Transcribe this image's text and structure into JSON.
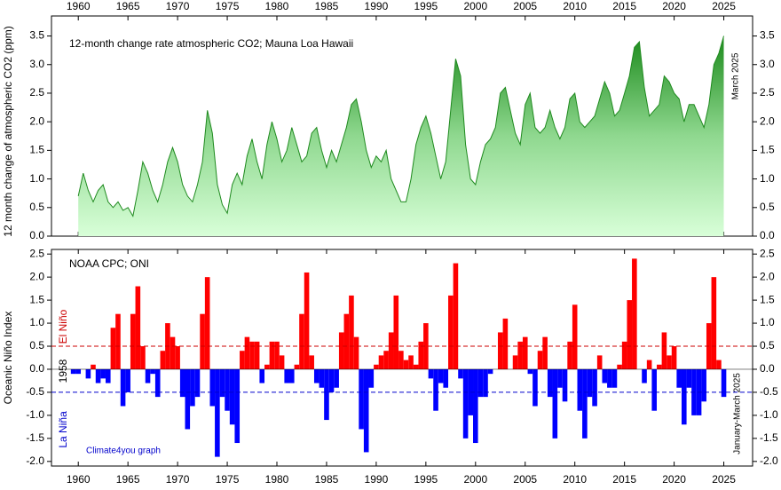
{
  "chart_data": [
    {
      "type": "area",
      "title": "12-month change rate atmospheric CO2; Mauna Loa Hawaii",
      "y_label": "12 month change of atmospheric CO2 (ppm)",
      "side_note": "March 2025",
      "color": "#1f8a1f",
      "x": [
        1960,
        1960.5,
        1961,
        1961.5,
        1962,
        1962.5,
        1963,
        1963.5,
        1964,
        1964.5,
        1965,
        1965.5,
        1966,
        1966.5,
        1967,
        1967.5,
        1968,
        1968.5,
        1969,
        1969.5,
        1970,
        1970.5,
        1971,
        1971.5,
        1972,
        1972.5,
        1973,
        1973.5,
        1974,
        1974.5,
        1975,
        1975.5,
        1976,
        1976.5,
        1977,
        1977.5,
        1978,
        1978.5,
        1979,
        1979.5,
        1980,
        1980.5,
        1981,
        1981.5,
        1982,
        1982.5,
        1983,
        1983.5,
        1984,
        1984.5,
        1985,
        1985.5,
        1986,
        1986.5,
        1987,
        1987.5,
        1988,
        1988.5,
        1989,
        1989.5,
        1990,
        1990.5,
        1991,
        1991.5,
        1992,
        1992.5,
        1993,
        1993.5,
        1994,
        1994.5,
        1995,
        1995.5,
        1996,
        1996.5,
        1997,
        1997.5,
        1998,
        1998.5,
        1999,
        1999.5,
        2000,
        2000.5,
        2001,
        2001.5,
        2002,
        2002.5,
        2003,
        2003.5,
        2004,
        2004.5,
        2005,
        2005.5,
        2006,
        2006.5,
        2007,
        2007.5,
        2008,
        2008.5,
        2009,
        2009.5,
        2010,
        2010.5,
        2011,
        2011.5,
        2012,
        2012.5,
        2013,
        2013.5,
        2014,
        2014.5,
        2015,
        2015.5,
        2016,
        2016.5,
        2017,
        2017.5,
        2018,
        2018.5,
        2019,
        2019.5,
        2020,
        2020.5,
        2021,
        2021.5,
        2022,
        2022.5,
        2023,
        2023.5,
        2024,
        2024.5,
        2025
      ],
      "values": [
        0.7,
        1.1,
        0.8,
        0.6,
        0.8,
        0.9,
        0.6,
        0.5,
        0.6,
        0.45,
        0.5,
        0.35,
        0.8,
        1.3,
        1.1,
        0.8,
        0.6,
        0.9,
        1.3,
        1.55,
        1.3,
        0.9,
        0.7,
        0.6,
        0.9,
        1.3,
        2.2,
        1.8,
        0.9,
        0.55,
        0.4,
        0.9,
        1.1,
        0.9,
        1.4,
        1.7,
        1.3,
        1.0,
        1.6,
        2.0,
        1.7,
        1.3,
        1.5,
        1.9,
        1.6,
        1.3,
        1.4,
        1.8,
        1.9,
        1.5,
        1.2,
        1.5,
        1.3,
        1.6,
        1.9,
        2.3,
        2.4,
        2.0,
        1.5,
        1.2,
        1.4,
        1.3,
        1.5,
        1.0,
        0.8,
        0.6,
        0.6,
        1.0,
        1.6,
        1.9,
        2.1,
        1.8,
        1.4,
        1.0,
        1.3,
        2.2,
        3.1,
        2.8,
        1.6,
        1.0,
        0.9,
        1.3,
        1.6,
        1.7,
        1.9,
        2.5,
        2.6,
        2.2,
        1.8,
        1.6,
        2.3,
        2.5,
        1.9,
        1.8,
        1.9,
        2.2,
        1.9,
        1.7,
        1.9,
        2.4,
        2.5,
        2.0,
        1.9,
        2.0,
        2.1,
        2.4,
        2.7,
        2.5,
        2.1,
        2.2,
        2.5,
        2.8,
        3.3,
        3.4,
        2.6,
        2.1,
        2.2,
        2.3,
        2.8,
        2.7,
        2.5,
        2.4,
        2.0,
        2.3,
        2.3,
        2.1,
        1.9,
        2.3,
        3.0,
        3.2,
        3.5
      ],
      "xlim": [
        1957.3,
        2027.9
      ],
      "xticks": [
        1960,
        1965,
        1970,
        1975,
        1980,
        1985,
        1990,
        1995,
        2000,
        2005,
        2010,
        2015,
        2020,
        2025
      ],
      "ylim": [
        0,
        3.85
      ],
      "yticks": [
        {
          "value": 0,
          "label": "0.0"
        },
        0.5,
        {
          "value": 1,
          "label": "1.0"
        },
        1.5,
        {
          "value": 2,
          "label": "2.0"
        },
        2.5,
        {
          "value": 3,
          "label": "3.0"
        },
        3.5
      ]
    },
    {
      "type": "bar",
      "title": "NOAA CPC; ONI",
      "y_label": "Oceanic Niño Index",
      "start_label": "1958",
      "side_note": "January-March 2025",
      "credit": "Climate4you graph",
      "positive_color": "#ff0000",
      "negative_color": "#0000ff",
      "thresholds": [
        {
          "value": 0.5,
          "label": "El Niño",
          "color": "#cc0000"
        },
        {
          "value": -0.5,
          "label": "La Niña",
          "color": "#0000cc"
        }
      ],
      "x": [
        1959.5,
        1960,
        1960.5,
        1961,
        1961.5,
        1962,
        1962.5,
        1963,
        1963.5,
        1964,
        1964.5,
        1965,
        1965.5,
        1966,
        1966.5,
        1967,
        1967.5,
        1968,
        1968.5,
        1969,
        1969.5,
        1970,
        1970.5,
        1971,
        1971.5,
        1972,
        1972.5,
        1973,
        1973.5,
        1974,
        1974.5,
        1975,
        1975.5,
        1976,
        1976.5,
        1977,
        1977.5,
        1978,
        1978.5,
        1979,
        1979.5,
        1980,
        1980.5,
        1981,
        1981.5,
        1982,
        1982.5,
        1983,
        1983.5,
        1984,
        1984.5,
        1985,
        1985.5,
        1986,
        1986.5,
        1987,
        1987.5,
        1988,
        1988.5,
        1989,
        1989.5,
        1990,
        1990.5,
        1991,
        1991.5,
        1992,
        1992.5,
        1993,
        1993.5,
        1994,
        1994.5,
        1995,
        1995.5,
        1996,
        1996.5,
        1997,
        1997.5,
        1998,
        1998.5,
        1999,
        1999.5,
        2000,
        2000.5,
        2001,
        2001.5,
        2002,
        2002.5,
        2003,
        2003.5,
        2004,
        2004.5,
        2005,
        2005.5,
        2006,
        2006.5,
        2007,
        2007.5,
        2008,
        2008.5,
        2009,
        2009.5,
        2010,
        2010.5,
        2011,
        2011.5,
        2012,
        2012.5,
        2013,
        2013.5,
        2014,
        2014.5,
        2015,
        2015.5,
        2016,
        2016.5,
        2017,
        2017.5,
        2018,
        2018.5,
        2019,
        2019.5,
        2020,
        2020.5,
        2021,
        2021.5,
        2022,
        2022.5,
        2023,
        2023.5,
        2024,
        2024.5,
        2025
      ],
      "values": [
        -0.1,
        -0.1,
        0.0,
        -0.2,
        0.1,
        -0.3,
        -0.2,
        -0.3,
        0.9,
        1.2,
        -0.8,
        -0.5,
        1.2,
        1.8,
        0.5,
        -0.3,
        -0.1,
        -0.6,
        0.4,
        1.0,
        0.7,
        0.5,
        -0.6,
        -1.3,
        -0.8,
        -0.6,
        1.2,
        2.0,
        -0.8,
        -1.9,
        -0.6,
        -0.9,
        -1.2,
        -1.6,
        0.4,
        0.7,
        0.6,
        0.6,
        -0.3,
        0.1,
        0.6,
        0.6,
        0.3,
        -0.3,
        -0.3,
        0.1,
        1.2,
        2.1,
        0.3,
        -0.3,
        -0.4,
        -1.1,
        -0.5,
        -0.4,
        0.8,
        1.2,
        1.6,
        0.7,
        -1.3,
        -1.8,
        -0.4,
        0.1,
        0.3,
        0.4,
        0.8,
        1.6,
        0.4,
        0.2,
        0.3,
        0.1,
        0.6,
        1.0,
        -0.2,
        -0.9,
        -0.3,
        -0.4,
        1.6,
        2.3,
        -0.2,
        -1.5,
        -1.0,
        -1.6,
        -0.6,
        -0.6,
        -0.1,
        0.0,
        0.8,
        1.1,
        0.0,
        0.3,
        0.6,
        0.7,
        -0.1,
        -0.8,
        0.4,
        0.7,
        -0.6,
        -1.5,
        -0.4,
        -0.7,
        0.6,
        1.4,
        -0.9,
        -1.5,
        -0.6,
        -0.8,
        0.3,
        -0.3,
        -0.4,
        -0.4,
        0.1,
        0.6,
        1.5,
        2.4,
        0.0,
        -0.3,
        0.2,
        -0.9,
        0.1,
        0.8,
        0.3,
        0.5,
        -0.4,
        -1.2,
        -0.4,
        -1.0,
        -1.0,
        -0.7,
        1.0,
        2.0,
        0.2,
        -0.6
      ],
      "xlim": [
        1957.3,
        2027.9
      ],
      "xticks": [
        1960,
        1965,
        1970,
        1975,
        1980,
        1985,
        1990,
        1995,
        2000,
        2005,
        2010,
        2015,
        2020,
        2025
      ],
      "ylim": [
        -2.1,
        2.6
      ],
      "yticks": [
        2.5,
        {
          "value": 2,
          "label": "2.0"
        },
        1.5,
        {
          "value": 1,
          "label": "1.0"
        },
        0.5,
        {
          "value": 0,
          "label": "0.0"
        },
        -0.5,
        {
          "value": -1,
          "label": "-1.0"
        },
        -1.5,
        {
          "value": -2,
          "label": "-2.0"
        }
      ]
    }
  ]
}
